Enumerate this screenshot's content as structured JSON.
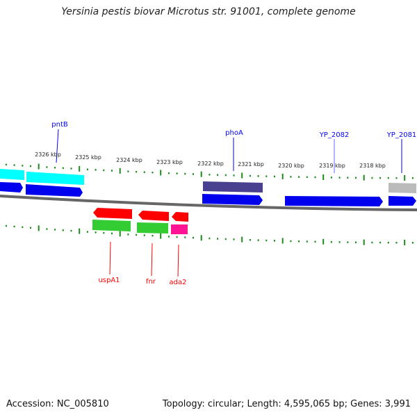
{
  "title": "Yersinia pestis biovar Microtus str. 91001, complete genome",
  "footer": {
    "accession": "Accession: NC_005810",
    "summary": "Topology: circular; Length: 4,595,065 bp; Genes: 3,991"
  },
  "scale_labels": [
    "2326 kbp",
    "2325 kbp",
    "2324 kbp",
    "2323 kbp",
    "2322 kbp",
    "2321 kbp",
    "2320 kbp",
    "2319 kbp",
    "2318 kbp"
  ],
  "forward_genes": [
    "pntB",
    "phoA",
    "YP_2082",
    "YP_2081"
  ],
  "reverse_genes": [
    "uspA1",
    "fnr",
    "ada2"
  ],
  "colors": {
    "forward_label": "#0000ff",
    "reverse_label": "#ff0000",
    "tick": "#1a8a1a",
    "cds": "#0000ee",
    "cyan": "#00ffff",
    "purple": "#4a4090",
    "gray": "#bbbbbb",
    "red": "#ff0000",
    "green": "#33cc33",
    "magenta": "#ff1493",
    "backbone": "#777777"
  }
}
